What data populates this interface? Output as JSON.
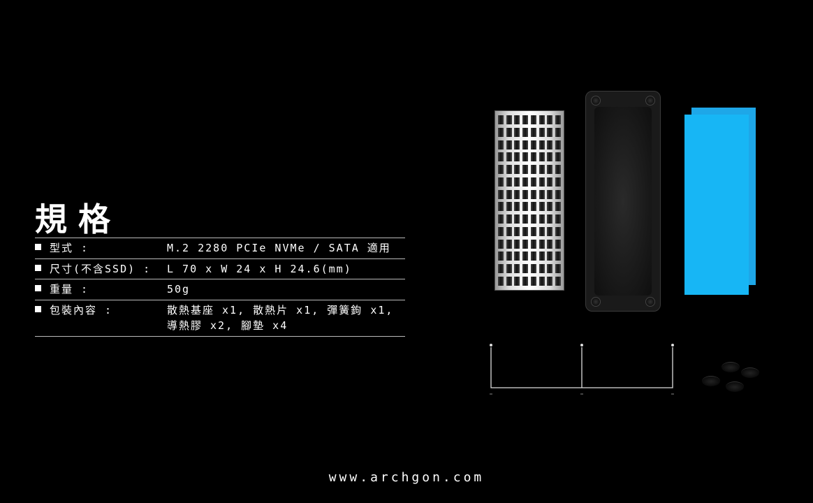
{
  "title": "規格",
  "specs": [
    {
      "label": "型式 :",
      "value": "M.2 2280 PCIe NVMe / SATA 適用"
    },
    {
      "label": "尺寸(不含SSD) :",
      "value": "L 70 x W 24 x H 24.6(mm)"
    },
    {
      "label": "重量 :",
      "value": "50g"
    },
    {
      "label": "包裝內容 :",
      "value": "散熱基座 x1, 散熱片 x1, 彈簧鉤 x1,\n導熱膠 x2, 腳墊 x4"
    }
  ],
  "footer_url": "www.archgon.com",
  "colors": {
    "background": "#000000",
    "text": "#ffffff",
    "divider": "#bbbbbb",
    "heatsink_light": "#ffffff",
    "heatsink_dark": "#666666",
    "base": "#1a1a1a",
    "thermal_pad_back": "#1ea7e8",
    "thermal_pad_front": "#17b6f5"
  },
  "components": {
    "heatsink": {
      "fin_rows": 14,
      "fins_per_row": 8
    },
    "feet_count": 4
  }
}
